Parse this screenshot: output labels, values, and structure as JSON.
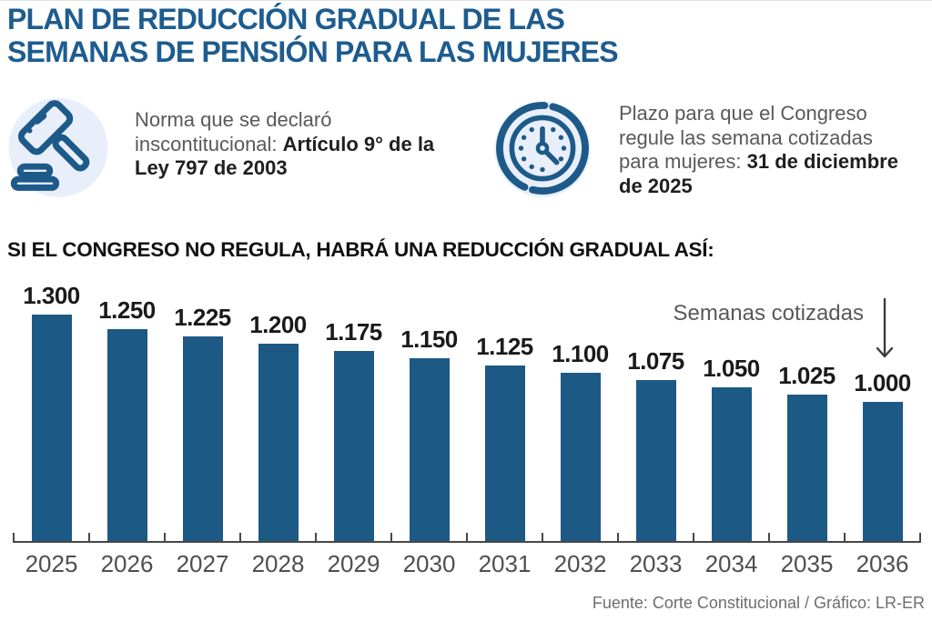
{
  "header": {
    "title_lines": [
      "PLAN DE REDUCCIÓN GRADUAL DE LAS",
      "SEMANAS DE PENSIÓN PARA LAS MUJERES"
    ]
  },
  "facts": {
    "norm": {
      "icon": "gavel-icon",
      "text": "Norma que se declaró inscontitucional: ",
      "bold": "Artículo 9° de la Ley 797 de 2003"
    },
    "deadline": {
      "icon": "clock-icon",
      "text": "Plazo para que el Congreso regule las semana cotizadas para mujeres: ",
      "bold": "31 de diciembre de 2025"
    }
  },
  "section_heading": "SI EL CONGRESO NO REGULA, HABRÁ UNA REDUCCIÓN GRADUAL ASÍ:",
  "chart_data": {
    "type": "bar",
    "title": "SI EL CONGRESO NO REGULA, HABRÁ UNA REDUCCIÓN GRADUAL ASÍ:",
    "categories": [
      "2025",
      "2026",
      "2027",
      "2028",
      "2029",
      "2030",
      "2031",
      "2032",
      "2033",
      "2034",
      "2035",
      "2036"
    ],
    "values": [
      1300,
      1250,
      1225,
      1200,
      1175,
      1150,
      1125,
      1100,
      1075,
      1050,
      1025,
      1000
    ],
    "value_labels": [
      "1.300",
      "1.250",
      "1.225",
      "1.200",
      "1.175",
      "1.150",
      "1.125",
      "1.100",
      "1.075",
      "1.050",
      "1.025",
      "1.000"
    ],
    "annotation": "Semanas cotizadas",
    "xlabel": "",
    "ylabel": "Semanas cotizadas",
    "ylim": [
      1000,
      1300
    ],
    "grid": false,
    "legend": false,
    "bar_color": "#1d5985"
  },
  "footer": {
    "source": "Fuente: Corte Constitucional / Gráfico: LR-ER"
  },
  "colors": {
    "title_blue": "#1d5c8f",
    "bar_blue": "#1d5985",
    "icon_stroke": "#1d5a8a",
    "icon_bg": "#e9effa",
    "axis_gray": "#474747",
    "text_gray": "#58595b"
  }
}
